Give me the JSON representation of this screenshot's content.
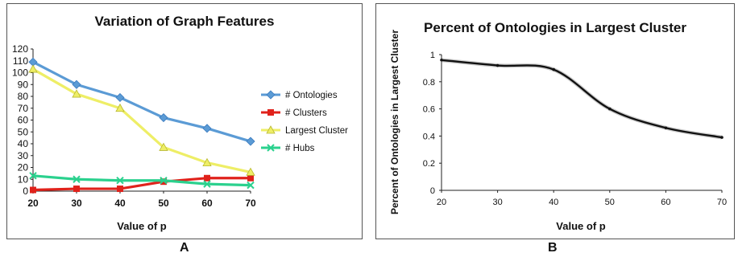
{
  "panel_labels": {
    "a": "A",
    "b": "B"
  },
  "chart_data": [
    {
      "type": "line",
      "title": "Variation of Graph Features",
      "xlabel": "Value of p",
      "ylabel": "",
      "x": [
        20,
        30,
        40,
        50,
        60,
        70
      ],
      "x_ticks": [
        20,
        30,
        40,
        50,
        60,
        70
      ],
      "ylim": [
        0,
        120
      ],
      "y_ticks": [
        0,
        10,
        20,
        30,
        40,
        50,
        60,
        70,
        80,
        90,
        100,
        110,
        120
      ],
      "grid": false,
      "legend_position": "right",
      "series": [
        {
          "name": "# Ontologies",
          "color": "#5b9bd5",
          "marker": "diamond",
          "values": [
            109,
            90,
            79,
            62,
            53,
            42
          ]
        },
        {
          "name": "# Clusters",
          "color": "#e0221b",
          "marker": "square",
          "values": [
            1,
            2,
            2,
            8,
            11,
            11
          ]
        },
        {
          "name": "Largest Cluster",
          "color": "#eeee66",
          "marker": "triangle",
          "values": [
            103,
            82,
            70,
            37,
            24,
            16
          ]
        },
        {
          "name": "# Hubs",
          "color": "#2bd18e",
          "marker": "x",
          "values": [
            13,
            10,
            9,
            9,
            6,
            5
          ]
        }
      ]
    },
    {
      "type": "line",
      "title": "Percent of Ontologies in Largest Cluster",
      "xlabel": "Value of p",
      "ylabel": "Percent of Ontologies in Largest Cluster",
      "x": [
        20,
        30,
        40,
        50,
        60,
        70
      ],
      "x_ticks": [
        20,
        30,
        40,
        50,
        60,
        70
      ],
      "ylim": [
        0,
        1
      ],
      "y_ticks": [
        "0",
        "0.2",
        "0.4",
        "0.6",
        "0.8",
        "1"
      ],
      "grid": false,
      "series": [
        {
          "color": "#111111",
          "smooth": true,
          "values": [
            0.96,
            0.92,
            0.89,
            0.6,
            0.46,
            0.39
          ]
        }
      ]
    }
  ]
}
